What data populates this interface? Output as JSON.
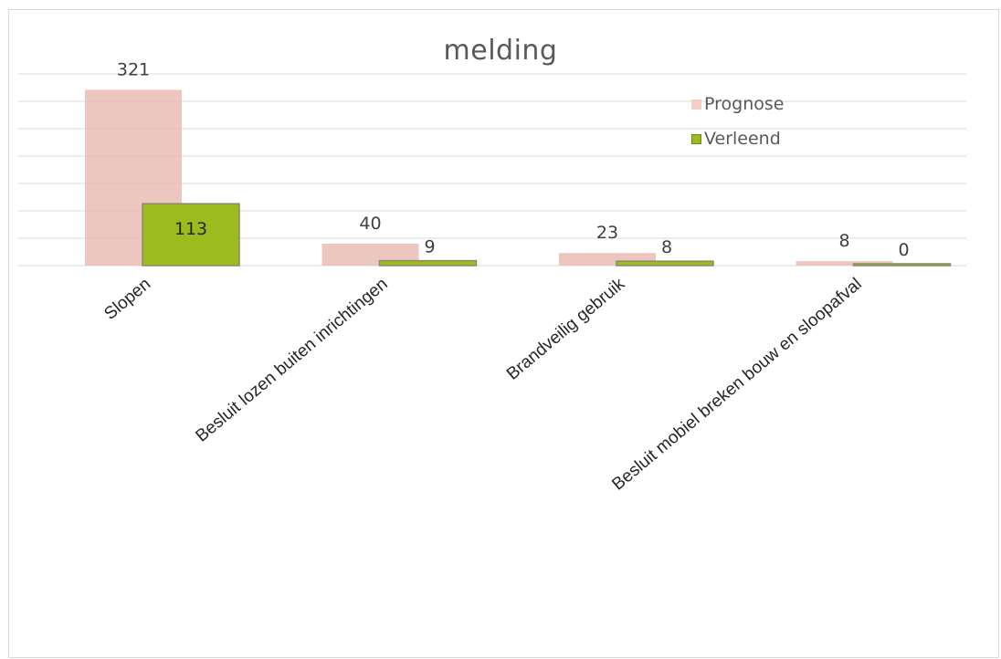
{
  "chart_data": {
    "type": "bar",
    "title": "melding",
    "categories": [
      "Slopen",
      "Besluit lozen buiten inrichtingen",
      "Brandveilig gebruik",
      "Besluit mobiel breken bouw en sloopafval"
    ],
    "series": [
      {
        "name": "Prognose",
        "values": [
          321,
          40,
          23,
          8
        ],
        "color": "#e9bcb4"
      },
      {
        "name": "Verleend",
        "values": [
          113,
          9,
          8,
          0
        ],
        "color": "#9bbb1e"
      }
    ],
    "ylim": [
      0,
      350
    ],
    "grid": true,
    "legend_position": "top-right",
    "xlabel": "",
    "ylabel": ""
  }
}
